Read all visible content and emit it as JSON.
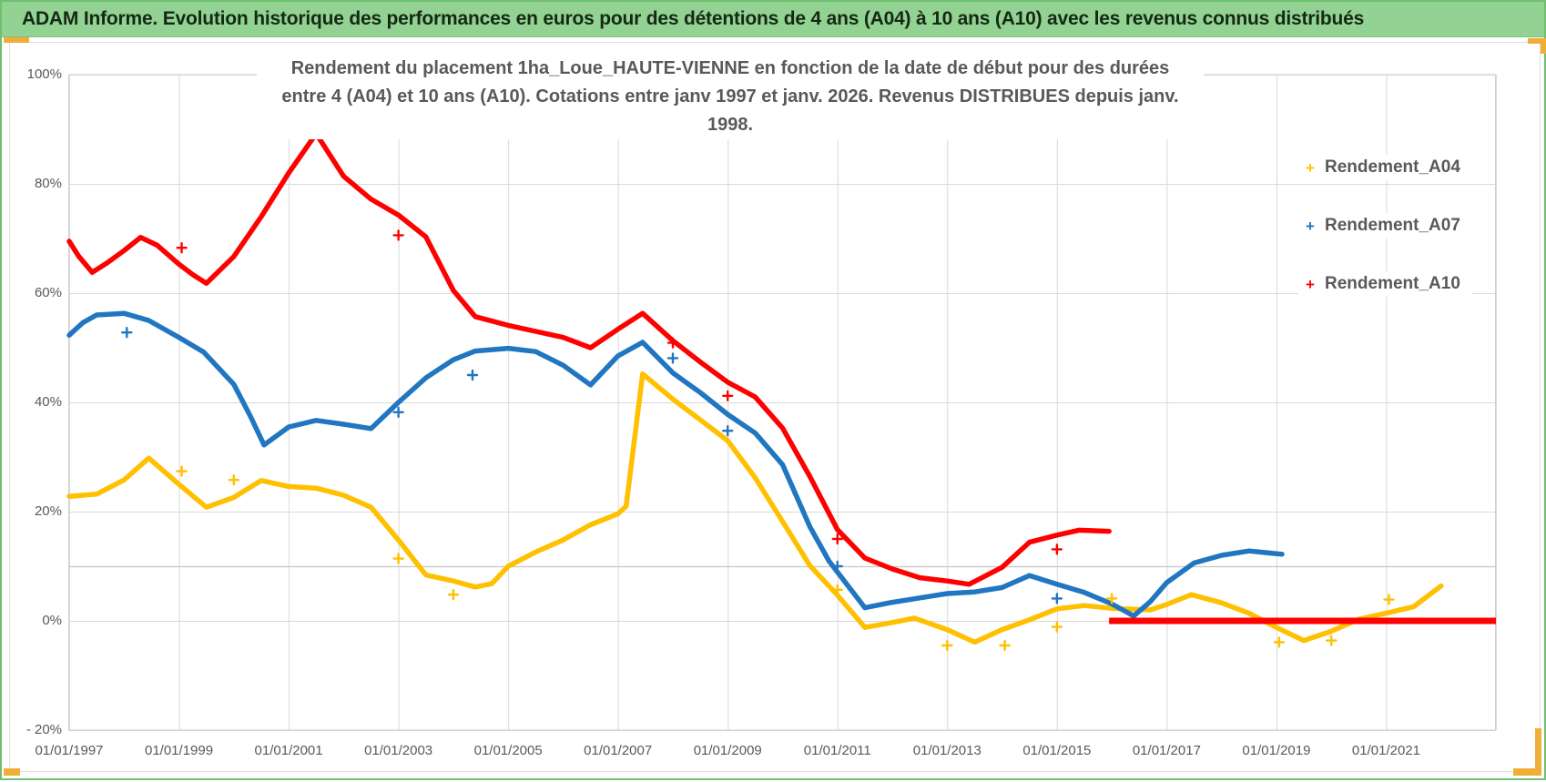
{
  "header": {
    "title": "ADAM Informe. Evolution historique des performances en euros pour des détentions de 4 ans (A04) à 10 ans (A10) avec les revenus connus distribués"
  },
  "chart": {
    "title_line1": "Rendement du placement 1ha_Loue_HAUTE-VIENNE en fonction de la date de début pour des durées",
    "title_line2": "entre 4 (A04) et 10 ans (A10). Cotations entre janv 1997 et janv. 2026. Revenus DISTRIBUES depuis janv. 1998."
  },
  "colors": {
    "header_green": "#92d292",
    "frame_green": "#6fbf6f",
    "selection_orange": "#efae36",
    "grid_gray": "#d9d9d9",
    "axis_text_gray": "#595959",
    "series_a04": "#FFC000",
    "series_a07": "#2076C0",
    "series_a10": "#FF0000"
  },
  "chart_data": {
    "type": "line",
    "title": "Rendement du placement 1ha_Loue_HAUTE-VIENNE en fonction de la date de début pour des durées entre 4 (A04) et 10 ans (A10). Cotations entre janv 1997 et janv. 2026. Revenus DISTRIBUES depuis janv. 1998.",
    "xlabel": "",
    "ylabel": "",
    "grid": true,
    "legend_position": "right-top",
    "x_axis": {
      "range_years": [
        1997,
        2023
      ],
      "ticks": [
        {
          "label": "01/01/1997",
          "year": 1997
        },
        {
          "label": "01/01/1999",
          "year": 1999
        },
        {
          "label": "01/01/2001",
          "year": 2001
        },
        {
          "label": "01/01/2003",
          "year": 2003
        },
        {
          "label": "01/01/2005",
          "year": 2005
        },
        {
          "label": "01/01/2007",
          "year": 2007
        },
        {
          "label": "01/01/2009",
          "year": 2009
        },
        {
          "label": "01/01/2011",
          "year": 2011
        },
        {
          "label": "01/01/2013",
          "year": 2013
        },
        {
          "label": "01/01/2015",
          "year": 2015
        },
        {
          "label": "01/01/2017",
          "year": 2017
        },
        {
          "label": "01/01/2019",
          "year": 2019
        },
        {
          "label": "01/01/2021",
          "year": 2021
        }
      ]
    },
    "y_axis": {
      "range_percent": [
        -20,
        100
      ],
      "ticks": [
        {
          "label": "100%",
          "value": 100
        },
        {
          "label": "80%",
          "value": 80
        },
        {
          "label": "60%",
          "value": 60
        },
        {
          "label": "40%",
          "value": 40
        },
        {
          "label": "20%",
          "value": 20
        },
        {
          "label": "0%",
          "value": 0
        },
        {
          "label": "- 20%",
          "value": -20
        }
      ]
    },
    "reference_line_percent": 10,
    "legend": [
      {
        "label": "Rendement_A04",
        "color": "#FFC000"
      },
      {
        "label": "Rendement_A07",
        "color": "#2076C0"
      },
      {
        "label": "Rendement_A10",
        "color": "#FF0000"
      }
    ],
    "series": [
      {
        "name": "Rendement_A04",
        "color": "#FFC000",
        "points": [
          [
            1997.0,
            22.8
          ],
          [
            1997.5,
            23.2
          ],
          [
            1998.0,
            25.8
          ],
          [
            1998.45,
            29.8
          ],
          [
            1999.0,
            25.0
          ],
          [
            1999.5,
            20.8
          ],
          [
            2000.0,
            22.6
          ],
          [
            2000.5,
            25.7
          ],
          [
            2001.0,
            24.6
          ],
          [
            2001.5,
            24.3
          ],
          [
            2002.0,
            23.0
          ],
          [
            2002.5,
            20.8
          ],
          [
            2003.0,
            14.8
          ],
          [
            2003.5,
            8.4
          ],
          [
            2004.0,
            7.3
          ],
          [
            2004.4,
            6.2
          ],
          [
            2004.7,
            6.8
          ],
          [
            2005.0,
            10.0
          ],
          [
            2005.5,
            12.6
          ],
          [
            2006.0,
            14.8
          ],
          [
            2006.5,
            17.6
          ],
          [
            2007.0,
            19.6
          ],
          [
            2007.15,
            21.0
          ],
          [
            2007.45,
            45.2
          ],
          [
            2008.0,
            40.6
          ],
          [
            2008.5,
            36.8
          ],
          [
            2009.0,
            33.0
          ],
          [
            2009.5,
            26.2
          ],
          [
            2010.0,
            18.2
          ],
          [
            2010.5,
            10.1
          ],
          [
            2011.0,
            4.7
          ],
          [
            2011.5,
            -1.2
          ],
          [
            2012.0,
            -0.3
          ],
          [
            2012.4,
            0.5
          ],
          [
            2013.0,
            -1.6
          ],
          [
            2013.5,
            -3.9
          ],
          [
            2014.0,
            -1.6
          ],
          [
            2014.5,
            0.2
          ],
          [
            2015.0,
            2.2
          ],
          [
            2015.5,
            2.8
          ],
          [
            2016.0,
            2.3
          ],
          [
            2016.7,
            2.0
          ],
          [
            2017.0,
            3.0
          ],
          [
            2017.45,
            4.8
          ],
          [
            2018.0,
            3.3
          ],
          [
            2018.5,
            1.4
          ],
          [
            2019.0,
            -1.2
          ],
          [
            2019.5,
            -3.6
          ],
          [
            2020.0,
            -1.9
          ],
          [
            2020.5,
            0.3
          ],
          [
            2021.0,
            1.4
          ],
          [
            2021.5,
            2.6
          ],
          [
            2022.0,
            6.4
          ]
        ],
        "outliers": [
          [
            1999.05,
            27.4
          ],
          [
            2000.0,
            25.8
          ],
          [
            2003.0,
            11.4
          ],
          [
            2004.0,
            4.8
          ],
          [
            2011.0,
            5.7
          ],
          [
            2013.0,
            -4.5
          ],
          [
            2014.05,
            -4.5
          ],
          [
            2015.0,
            -1.1
          ],
          [
            2016.0,
            4.1
          ],
          [
            2019.05,
            -3.9
          ],
          [
            2020.0,
            -3.6
          ],
          [
            2021.05,
            3.9
          ]
        ]
      },
      {
        "name": "Rendement_A07",
        "color": "#2076C0",
        "points": [
          [
            1997.0,
            52.3
          ],
          [
            1997.25,
            54.6
          ],
          [
            1997.5,
            56.0
          ],
          [
            1998.0,
            56.3
          ],
          [
            1998.45,
            55.0
          ],
          [
            1999.0,
            51.9
          ],
          [
            1999.45,
            49.2
          ],
          [
            2000.0,
            43.3
          ],
          [
            2000.3,
            37.5
          ],
          [
            2000.55,
            32.2
          ],
          [
            2001.0,
            35.5
          ],
          [
            2001.5,
            36.7
          ],
          [
            2002.0,
            36.0
          ],
          [
            2002.5,
            35.2
          ],
          [
            2003.0,
            40.0
          ],
          [
            2003.5,
            44.5
          ],
          [
            2004.0,
            47.8
          ],
          [
            2004.4,
            49.4
          ],
          [
            2005.0,
            49.9
          ],
          [
            2005.5,
            49.3
          ],
          [
            2006.0,
            46.8
          ],
          [
            2006.5,
            43.2
          ],
          [
            2007.0,
            48.5
          ],
          [
            2007.45,
            51.0
          ],
          [
            2008.0,
            45.4
          ],
          [
            2008.5,
            41.8
          ],
          [
            2009.0,
            37.8
          ],
          [
            2009.5,
            34.4
          ],
          [
            2010.0,
            28.6
          ],
          [
            2010.5,
            17.2
          ],
          [
            2010.85,
            10.9
          ],
          [
            2011.5,
            2.4
          ],
          [
            2012.0,
            3.4
          ],
          [
            2012.5,
            4.2
          ],
          [
            2013.0,
            5.0
          ],
          [
            2013.5,
            5.3
          ],
          [
            2014.0,
            6.1
          ],
          [
            2014.5,
            8.3
          ],
          [
            2015.0,
            6.7
          ],
          [
            2015.5,
            5.2
          ],
          [
            2016.0,
            3.1
          ],
          [
            2016.4,
            0.9
          ],
          [
            2016.7,
            3.5
          ],
          [
            2017.0,
            7.0
          ],
          [
            2017.5,
            10.6
          ],
          [
            2018.0,
            12.0
          ],
          [
            2018.5,
            12.8
          ],
          [
            2019.0,
            12.3
          ],
          [
            2019.1,
            12.2
          ]
        ],
        "outliers": [
          [
            1998.05,
            52.8
          ],
          [
            2003.0,
            38.2
          ],
          [
            2004.35,
            45.0
          ],
          [
            2008.0,
            48.1
          ],
          [
            2009.0,
            34.8
          ],
          [
            2011.0,
            10.0
          ],
          [
            2015.0,
            4.1
          ]
        ]
      },
      {
        "name": "Rendement_A10",
        "color": "#FF0000",
        "points": [
          [
            1997.0,
            69.5
          ],
          [
            1997.17,
            66.8
          ],
          [
            1997.42,
            63.8
          ],
          [
            1997.7,
            65.6
          ],
          [
            1998.0,
            67.8
          ],
          [
            1998.3,
            70.2
          ],
          [
            1998.6,
            68.8
          ],
          [
            1999.0,
            65.3
          ],
          [
            1999.25,
            63.4
          ],
          [
            1999.5,
            61.8
          ],
          [
            2000.0,
            66.7
          ],
          [
            2000.5,
            74.0
          ],
          [
            2001.0,
            82.0
          ],
          [
            2001.5,
            89.2
          ],
          [
            2002.0,
            81.4
          ],
          [
            2002.5,
            77.2
          ],
          [
            2003.0,
            74.3
          ],
          [
            2003.5,
            70.3
          ],
          [
            2004.0,
            60.5
          ],
          [
            2004.4,
            55.7
          ],
          [
            2005.0,
            54.1
          ],
          [
            2005.5,
            53.0
          ],
          [
            2006.0,
            51.9
          ],
          [
            2006.5,
            50.0
          ],
          [
            2007.0,
            53.4
          ],
          [
            2007.45,
            56.3
          ],
          [
            2008.0,
            51.3
          ],
          [
            2008.5,
            47.4
          ],
          [
            2009.0,
            43.7
          ],
          [
            2009.5,
            41.0
          ],
          [
            2010.0,
            35.3
          ],
          [
            2010.5,
            26.4
          ],
          [
            2011.0,
            16.7
          ],
          [
            2011.5,
            11.5
          ],
          [
            2012.0,
            9.5
          ],
          [
            2012.5,
            7.9
          ],
          [
            2013.0,
            7.3
          ],
          [
            2013.4,
            6.7
          ],
          [
            2014.0,
            9.8
          ],
          [
            2014.5,
            14.4
          ],
          [
            2015.0,
            15.7
          ],
          [
            2015.4,
            16.6
          ],
          [
            2015.95,
            16.4
          ]
        ],
        "outliers": [
          [
            1999.05,
            68.3
          ],
          [
            2003.0,
            70.6
          ],
          [
            2008.0,
            50.9
          ],
          [
            2009.0,
            41.2
          ],
          [
            2011.0,
            15.0
          ],
          [
            2015.0,
            13.1
          ]
        ],
        "zero_segment": [
          [
            2015.95,
            0.0
          ],
          [
            2023.0,
            0.0
          ]
        ]
      }
    ]
  }
}
